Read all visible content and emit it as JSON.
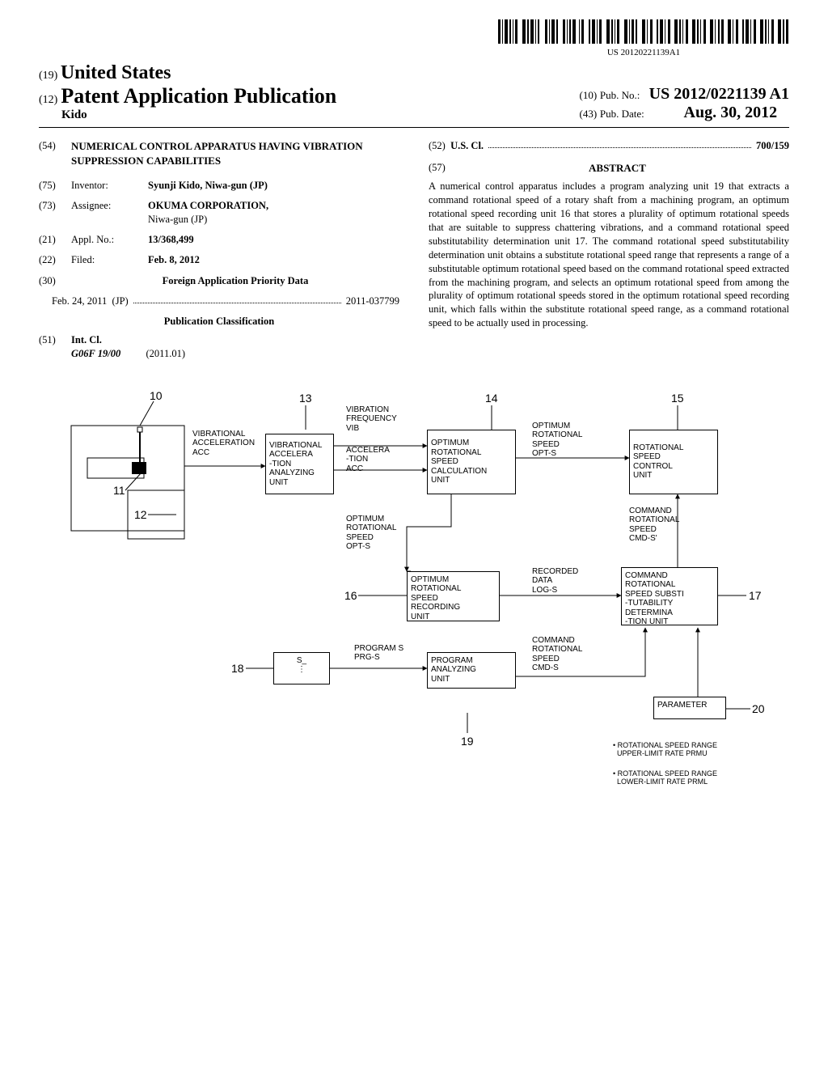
{
  "barcode_text": "US 20120221139A1",
  "header": {
    "country_code": "(19)",
    "country": "United States",
    "pub_code": "(12)",
    "pub_label": "Patent Application Publication",
    "author": "Kido",
    "pubno_code": "(10)",
    "pubno_label": "Pub. No.:",
    "pubno_value": "US 2012/0221139 A1",
    "pubdate_code": "(43)",
    "pubdate_label": "Pub. Date:",
    "pubdate_value": "Aug. 30, 2012"
  },
  "left": {
    "title_code": "(54)",
    "title": "NUMERICAL CONTROL APPARATUS HAVING VIBRATION SUPPRESSION CAPABILITIES",
    "inventor_code": "(75)",
    "inventor_label": "Inventor:",
    "inventor_value": "Syunji Kido, Niwa-gun (JP)",
    "assignee_code": "(73)",
    "assignee_label": "Assignee:",
    "assignee_value": "OKUMA CORPORATION, ",
    "assignee_value2": "Niwa-gun (JP)",
    "applno_code": "(21)",
    "applno_label": "Appl. No.:",
    "applno_value": "13/368,499",
    "filed_code": "(22)",
    "filed_label": "Filed:",
    "filed_value": "Feb. 8, 2012",
    "priority_code": "(30)",
    "priority_heading": "Foreign Application Priority Data",
    "priority_date": "Feb. 24, 2011",
    "priority_country": "(JP)",
    "priority_num": "2011-037799",
    "pubclass_heading": "Publication Classification",
    "intcl_code": "(51)",
    "intcl_label": "Int. Cl.",
    "intcl_class": "G06F 19/00",
    "intcl_year": "(2011.01)"
  },
  "right": {
    "uscl_code": "(52)",
    "uscl_label": "U.S. Cl.",
    "uscl_value": "700/159",
    "abstract_code": "(57)",
    "abstract_label": "ABSTRACT",
    "abstract_text": "A numerical control apparatus includes a program analyzing unit 19 that extracts a command rotational speed of a rotary shaft from a machining program, an optimum rotational speed recording unit 16 that stores a plurality of optimum rotational speeds that are suitable to suppress chattering vibrations, and a command rotational speed substitutability determination unit 17. The command rotational speed substitutability determination unit obtains a substitute rotational speed range that represents a range of a substitutable optimum rotational speed based on the command rotational speed extracted from the machining program, and selects an optimum rotational speed from among the plurality of optimum rotational speeds stored in the optimum rotational speed recording unit, which falls within the substitute rotational speed range, as a command rotational speed to be actually used in processing."
  },
  "diagram": {
    "node10": "10",
    "node11": "11",
    "node12": "12",
    "node13": "13",
    "node14": "14",
    "node15": "15",
    "node16": "16",
    "node17": "17",
    "node18": "18",
    "node19": "19",
    "node20": "20",
    "box13": "VIBRATIONAL\nACCELERA\n-TION\nANALYZING\nUNIT",
    "box14": "OPTIMUM\nROTATIONAL\nSPEED\nCALCULATION\nUNIT",
    "box15": "ROTATIONAL\nSPEED\nCONTROL\nUNIT",
    "box16": "OPTIMUM\nROTATIONAL\nSPEED\nRECORDING\nUNIT",
    "box17": "COMMAND\nROTATIONAL\nSPEED SUBSTI\n-TUTABILITY\nDETERMINA\n-TION UNIT",
    "box18": "S_\n⋮",
    "box19": "PROGRAM\nANALYZING\nUNIT",
    "box20": "PARAMETER",
    "lbl_acc": "VIBRATIONAL\nACCELERATION\nACC",
    "lbl_vib": "VIBRATION\nFREQUENCY\nVIB",
    "lbl_acc2": "ACCELERA\n-TION\nACC",
    "lbl_opts": "OPTIMUM\nROTATIONAL\nSPEED\nOPT-S",
    "lbl_opts2": "OPTIMUM\nROTATIONAL\nSPEED\nOPT-S",
    "lbl_logs": "RECORDED\nDATA\nLOG-S",
    "lbl_cmds2": "COMMAND\nROTATIONAL\nSPEED\nCMD-S'",
    "lbl_cmds": "COMMAND\nROTATIONAL\nSPEED\nCMD-S",
    "lbl_prgs": "PROGRAM S\nPRG-S",
    "note1": "• ROTATIONAL SPEED RANGE\n  UPPER-LIMIT RATE PRMU",
    "note2": "• ROTATIONAL SPEED RANGE\n  LOWER-LIMIT RATE PRML"
  }
}
